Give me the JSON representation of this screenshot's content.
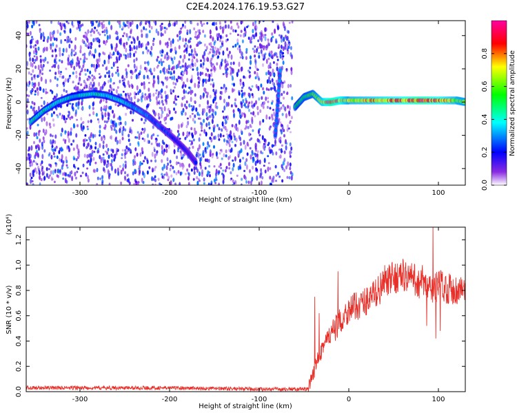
{
  "chart_data": [
    {
      "type": "heatmap",
      "title": "C2E4.2024.176.19.53.G27",
      "xlabel": "Height of straight line (km)",
      "ylabel": "Frequency (Hz)",
      "xlim": [
        -360,
        130
      ],
      "ylim": [
        -50,
        49
      ],
      "x_ticks": [
        -300,
        -200,
        -100,
        0,
        100
      ],
      "x_tick_labels": [
        "-300",
        "-200",
        "-100",
        "0",
        "100"
      ],
      "y_ticks": [
        -40,
        -20,
        0,
        20,
        40
      ],
      "y_tick_labels": [
        "-40",
        "-20",
        "0",
        "20",
        "40"
      ],
      "colorbar": {
        "label": "Normalized spectral amplitude",
        "range": [
          0,
          1
        ],
        "ticks": [
          0.0,
          0.2,
          0.4,
          0.6,
          0.8
        ],
        "tick_labels": [
          "0.0",
          "0.2",
          "0.4",
          "0.6",
          "0.8"
        ],
        "colors": [
          "#ffffff",
          "#8a2be2",
          "#0000ff",
          "#00ffff",
          "#00ff00",
          "#ffff00",
          "#ff0000",
          "#ff00a0"
        ]
      },
      "noise_region": {
        "x": [
          -360,
          -63
        ],
        "amplitude_range": [
          0.05,
          0.3
        ]
      },
      "ridges": [
        {
          "x": [
            -355,
            -340,
            -325,
            -310,
            -300,
            -285,
            -270,
            -255,
            -240,
            -225,
            -210,
            -195,
            -180,
            -170
          ],
          "y": [
            -12,
            -5,
            0,
            3,
            4,
            5,
            4,
            1,
            -3,
            -8,
            -15,
            -22,
            -30,
            -37
          ],
          "amplitude": [
            0.45,
            0.45,
            0.4,
            0.45,
            0.45,
            0.45,
            0.4,
            0.4,
            0.35,
            0.3,
            0.25,
            0.22,
            0.2,
            0.2
          ]
        },
        {
          "x": [
            -82,
            -76
          ],
          "y": [
            -20,
            22
          ],
          "amplitude": [
            0.3,
            0.3
          ]
        },
        {
          "x": [
            -60,
            -50,
            -40,
            -30,
            -20,
            -10,
            0,
            20,
            40,
            60,
            80,
            100,
            120,
            130
          ],
          "y": [
            -3,
            3,
            5,
            0,
            0,
            1,
            1,
            1,
            1,
            1,
            1,
            1,
            1,
            0
          ],
          "amplitude": [
            0.5,
            0.55,
            0.6,
            0.75,
            0.95,
            0.85,
            0.7,
            0.75,
            0.8,
            0.85,
            0.95,
            0.85,
            0.7,
            0.7
          ]
        }
      ]
    },
    {
      "type": "line",
      "xlabel": "Height of straight line (km)",
      "ylabel": "SNR (10 * v/v)",
      "y_multiplier_label": "(x10⁴)",
      "xlim": [
        -360,
        130
      ],
      "ylim": [
        0,
        1.3
      ],
      "x_ticks": [
        -300,
        -200,
        -100,
        0,
        100
      ],
      "x_tick_labels": [
        "-300",
        "-200",
        "-100",
        "0",
        "100"
      ],
      "y_ticks": [
        0.0,
        0.2,
        0.4,
        0.6,
        0.8,
        1.0,
        1.2
      ],
      "y_tick_labels": [
        "0.0",
        "0.2",
        "0.4",
        "0.6",
        "0.8",
        "1.0",
        "1.2"
      ],
      "line_color": "#e8302a",
      "series_trend": {
        "x": [
          -360,
          -300,
          -200,
          -100,
          -45,
          -40,
          -35,
          -30,
          -25,
          -20,
          -15,
          -10,
          -5,
          0,
          10,
          20,
          30,
          40,
          50,
          60,
          70,
          80,
          90,
          95,
          100,
          110,
          120,
          130
        ],
        "y": [
          0.03,
          0.03,
          0.03,
          0.02,
          0.02,
          0.12,
          0.28,
          0.35,
          0.4,
          0.45,
          0.5,
          0.55,
          0.6,
          0.65,
          0.68,
          0.72,
          0.78,
          0.85,
          0.9,
          0.92,
          0.9,
          0.85,
          0.82,
          0.8,
          0.85,
          0.82,
          0.8,
          0.82
        ]
      },
      "spikes": [
        {
          "x": -38,
          "y": 0.75
        },
        {
          "x": -33,
          "y": 0.62
        },
        {
          "x": -12,
          "y": 0.95
        },
        {
          "x": 40,
          "y": 1.0
        },
        {
          "x": 63,
          "y": 0.98
        },
        {
          "x": 82,
          "y": 1.0
        },
        {
          "x": 87,
          "y": 0.52
        },
        {
          "x": 94,
          "y": 1.3
        },
        {
          "x": 97,
          "y": 0.42
        },
        {
          "x": 102,
          "y": 0.48
        }
      ]
    }
  ]
}
